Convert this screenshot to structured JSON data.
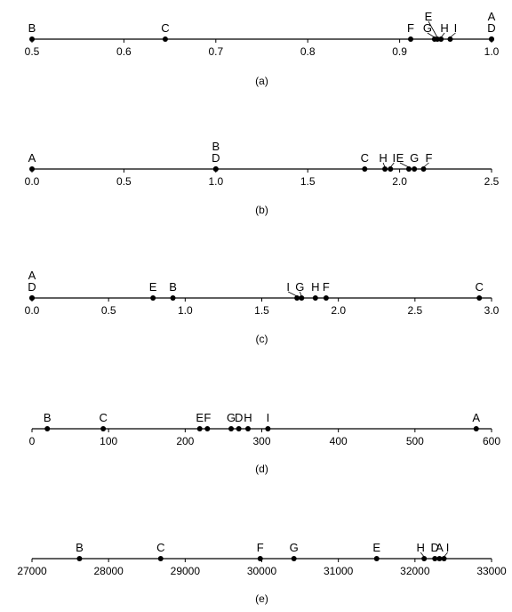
{
  "chart_data": [
    {
      "type": "scatter",
      "panel_label": "(a)",
      "xlim": [
        0.5,
        1.0
      ],
      "ticks": [
        "0.5",
        "0.6",
        "0.7",
        "0.8",
        "0.9",
        "1.0"
      ],
      "points": [
        {
          "label": "B",
          "x": 0.5
        },
        {
          "label": "C",
          "x": 0.645
        },
        {
          "label": "F",
          "x": 0.912
        },
        {
          "label": "G",
          "x": 0.938
        },
        {
          "label": "E",
          "x": 0.941
        },
        {
          "label": "H",
          "x": 0.945
        },
        {
          "label": "I",
          "x": 0.955
        },
        {
          "label": "A",
          "x": 1.0
        },
        {
          "label": "D",
          "x": 1.0
        }
      ]
    },
    {
      "type": "scatter",
      "panel_label": "(b)",
      "xlim": [
        0.0,
        2.5
      ],
      "ticks": [
        "0.0",
        "0.5",
        "1.0",
        "1.5",
        "2.0",
        "2.5"
      ],
      "points": [
        {
          "label": "A",
          "x": 0.0
        },
        {
          "label": "B",
          "x": 1.0
        },
        {
          "label": "D",
          "x": 1.0
        },
        {
          "label": "C",
          "x": 1.81
        },
        {
          "label": "H",
          "x": 1.92
        },
        {
          "label": "I",
          "x": 1.95
        },
        {
          "label": "E",
          "x": 2.05
        },
        {
          "label": "G",
          "x": 2.08
        },
        {
          "label": "F",
          "x": 2.13
        }
      ]
    },
    {
      "type": "scatter",
      "panel_label": "(c)",
      "xlim": [
        0.0,
        3.0
      ],
      "ticks": [
        "0.0",
        "0.5",
        "1.0",
        "1.5",
        "2.0",
        "2.5",
        "3.0"
      ],
      "points": [
        {
          "label": "A",
          "x": 0.0
        },
        {
          "label": "D",
          "x": 0.0
        },
        {
          "label": "E",
          "x": 0.79
        },
        {
          "label": "B",
          "x": 0.92
        },
        {
          "label": "I",
          "x": 1.73
        },
        {
          "label": "G",
          "x": 1.76
        },
        {
          "label": "H",
          "x": 1.85
        },
        {
          "label": "F",
          "x": 1.92
        },
        {
          "label": "C",
          "x": 2.92
        }
      ]
    },
    {
      "type": "scatter",
      "panel_label": "(d)",
      "xlim": [
        0,
        600
      ],
      "ticks": [
        "0",
        "100",
        "200",
        "300",
        "400",
        "500",
        "600"
      ],
      "points": [
        {
          "label": "B",
          "x": 20
        },
        {
          "label": "C",
          "x": 93
        },
        {
          "label": "E",
          "x": 219
        },
        {
          "label": "F",
          "x": 229
        },
        {
          "label": "G",
          "x": 260
        },
        {
          "label": "D",
          "x": 270
        },
        {
          "label": "H",
          "x": 282
        },
        {
          "label": "I",
          "x": 308
        },
        {
          "label": "A",
          "x": 580
        }
      ]
    },
    {
      "type": "scatter",
      "panel_label": "(e)",
      "xlim": [
        27000,
        33000
      ],
      "ticks": [
        "27000",
        "28000",
        "29000",
        "30000",
        "31000",
        "32000",
        "33000"
      ],
      "points": [
        {
          "label": "B",
          "x": 27620
        },
        {
          "label": "C",
          "x": 28680
        },
        {
          "label": "F",
          "x": 29980
        },
        {
          "label": "G",
          "x": 30420
        },
        {
          "label": "E",
          "x": 31500
        },
        {
          "label": "H",
          "x": 32120
        },
        {
          "label": "D",
          "x": 32260
        },
        {
          "label": "A",
          "x": 32320
        },
        {
          "label": "I",
          "x": 32380
        }
      ]
    }
  ]
}
